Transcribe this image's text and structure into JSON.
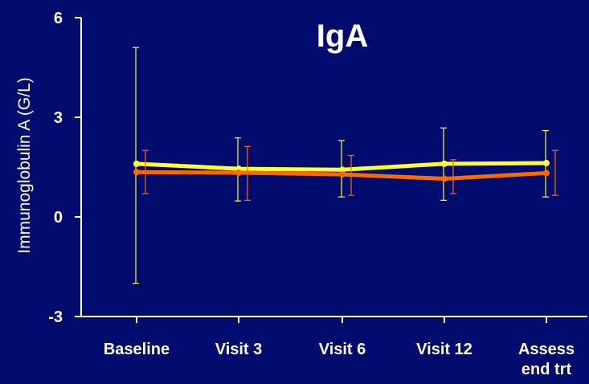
{
  "chart_data": {
    "type": "line",
    "title": "IgA",
    "ylabel": "Immunoglobulin A (G/L)",
    "xlabel": "",
    "categories": [
      [
        "Baseline"
      ],
      [
        "Visit 3"
      ],
      [
        "Visit 6"
      ],
      [
        "Visit 12"
      ],
      [
        "Assess",
        "end trt"
      ]
    ],
    "ylim": [
      -3,
      6
    ],
    "yticks": [
      -3,
      0,
      3,
      6
    ],
    "grid": false,
    "legend": "none",
    "background": "#000b6e",
    "axis_color": "#ffffff",
    "series": [
      {
        "color": "#ffff33",
        "values": [
          1.6,
          1.45,
          1.42,
          1.6,
          1.62
        ],
        "err_low": [
          -2.0,
          0.48,
          0.6,
          0.5,
          0.6
        ],
        "err_high": [
          5.1,
          2.38,
          2.3,
          2.68,
          2.6
        ]
      },
      {
        "color": "#ff6a00",
        "values": [
          1.35,
          1.33,
          1.28,
          1.15,
          1.32
        ],
        "err_low": [
          0.7,
          0.5,
          0.65,
          0.7,
          0.65
        ],
        "err_high": [
          2.0,
          2.12,
          1.85,
          1.72,
          2.0
        ]
      }
    ]
  }
}
